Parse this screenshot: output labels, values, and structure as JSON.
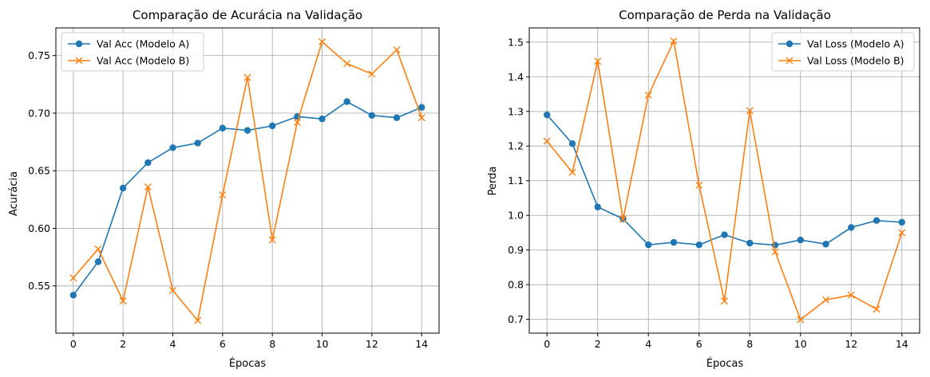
{
  "chart_data": [
    {
      "type": "line",
      "title": "Comparação de Acurácia na Validação",
      "xlabel": "Épocas",
      "ylabel": "Acurácia",
      "x": [
        0,
        1,
        2,
        3,
        4,
        5,
        6,
        7,
        8,
        9,
        10,
        11,
        12,
        13,
        14
      ],
      "xlim": [
        -0.7,
        14.7
      ],
      "ylim": [
        0.509,
        0.774
      ],
      "xticks": [
        "0",
        "2",
        "4",
        "6",
        "8",
        "10",
        "12",
        "14"
      ],
      "yticks": [
        "0.55",
        "0.60",
        "0.65",
        "0.70",
        "0.75"
      ],
      "grid": true,
      "legend_position": "upper-left",
      "series": [
        {
          "name": "Val Acc (Modelo A)",
          "color": "#1f77b4",
          "marker": "circle",
          "values": [
            0.542,
            0.571,
            0.635,
            0.657,
            0.67,
            0.674,
            0.687,
            0.685,
            0.689,
            0.697,
            0.695,
            0.71,
            0.698,
            0.696,
            0.705
          ]
        },
        {
          "name": "Val Acc (Modelo B)",
          "color": "#ff7f0e",
          "marker": "x",
          "values": [
            0.557,
            0.582,
            0.537,
            0.636,
            0.546,
            0.52,
            0.629,
            0.731,
            0.59,
            0.692,
            0.762,
            0.743,
            0.734,
            0.755,
            0.696
          ]
        }
      ]
    },
    {
      "type": "line",
      "title": "Comparação de Perda na Validação",
      "xlabel": "Épocas",
      "ylabel": "Perda",
      "x": [
        0,
        1,
        2,
        3,
        4,
        5,
        6,
        7,
        8,
        9,
        10,
        11,
        12,
        13,
        14
      ],
      "xlim": [
        -0.7,
        14.7
      ],
      "ylim": [
        0.66,
        1.541
      ],
      "xticks": [
        "0",
        "2",
        "4",
        "6",
        "8",
        "10",
        "12",
        "14"
      ],
      "yticks": [
        "0.7",
        "0.8",
        "0.9",
        "1.0",
        "1.1",
        "1.2",
        "1.3",
        "1.4",
        "1.5"
      ],
      "grid": true,
      "legend_position": "upper-right",
      "series": [
        {
          "name": "Val Loss (Modelo A)",
          "color": "#1f77b4",
          "marker": "circle",
          "values": [
            1.29,
            1.207,
            1.024,
            0.99,
            0.915,
            0.922,
            0.915,
            0.944,
            0.92,
            0.914,
            0.929,
            0.917,
            0.965,
            0.985,
            0.98
          ]
        },
        {
          "name": "Val Loss (Modelo B)",
          "color": "#ff7f0e",
          "marker": "x",
          "values": [
            1.214,
            1.124,
            1.445,
            0.989,
            1.347,
            1.503,
            1.087,
            0.753,
            1.302,
            0.895,
            0.699,
            0.756,
            0.77,
            0.729,
            0.95
          ]
        }
      ]
    }
  ]
}
